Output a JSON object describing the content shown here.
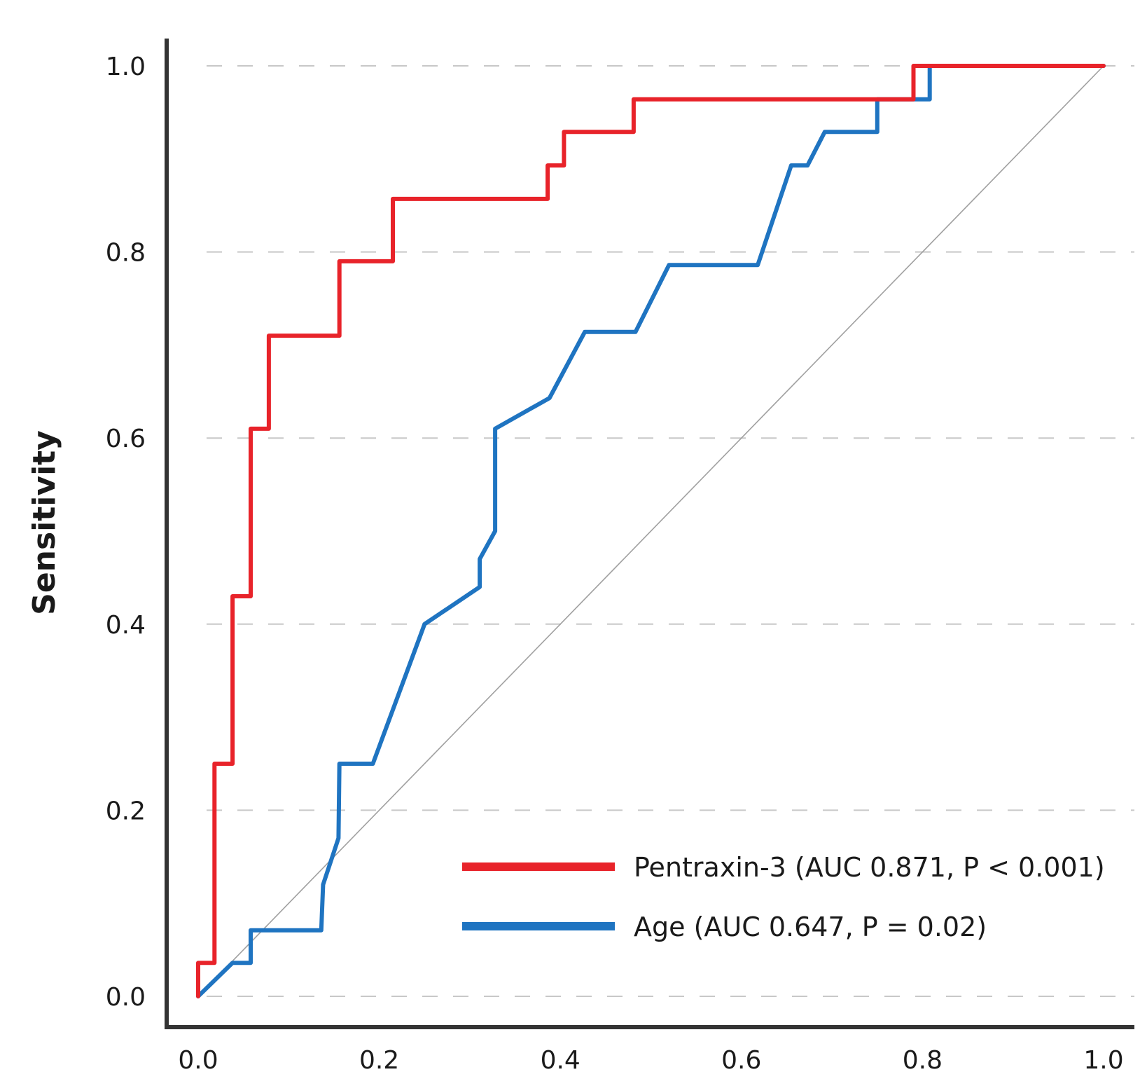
{
  "chart_data": {
    "type": "line",
    "title": "",
    "xlabel": "",
    "ylabel": "Sensitivity",
    "xlim": [
      0,
      1
    ],
    "ylim": [
      0,
      1
    ],
    "grid": "horizontal-dashed",
    "legend_position": "bottom-right",
    "x_ticks": [
      "0.0",
      "0.2",
      "0.4",
      "0.6",
      "0.8",
      "1.0"
    ],
    "y_ticks": [
      "0.0",
      "0.2",
      "0.4",
      "0.6",
      "0.8",
      "1.0"
    ],
    "reference_line": {
      "from": [
        0,
        0
      ],
      "to": [
        1,
        1
      ],
      "color": "#a0a0a0"
    },
    "series": [
      {
        "name": "Pentraxin-3 (AUC 0.871, P < 0.001)",
        "color": "#e8232a",
        "points": [
          [
            0.0,
            0.0
          ],
          [
            0.0,
            0.036
          ],
          [
            0.018,
            0.036
          ],
          [
            0.018,
            0.25
          ],
          [
            0.038,
            0.25
          ],
          [
            0.038,
            0.43
          ],
          [
            0.058,
            0.43
          ],
          [
            0.058,
            0.61
          ],
          [
            0.078,
            0.61
          ],
          [
            0.078,
            0.71
          ],
          [
            0.156,
            0.71
          ],
          [
            0.156,
            0.79
          ],
          [
            0.215,
            0.79
          ],
          [
            0.215,
            0.857
          ],
          [
            0.386,
            0.857
          ],
          [
            0.386,
            0.893
          ],
          [
            0.404,
            0.893
          ],
          [
            0.404,
            0.929
          ],
          [
            0.481,
            0.929
          ],
          [
            0.481,
            0.964
          ],
          [
            0.79,
            0.964
          ],
          [
            0.79,
            1.0
          ],
          [
            1.0,
            1.0
          ]
        ]
      },
      {
        "name": "Age (AUC 0.647, P = 0.02)",
        "color": "#1f74c1",
        "points": [
          [
            0.0,
            0.0
          ],
          [
            0.038,
            0.036
          ],
          [
            0.058,
            0.036
          ],
          [
            0.058,
            0.071
          ],
          [
            0.136,
            0.071
          ],
          [
            0.138,
            0.12
          ],
          [
            0.155,
            0.17
          ],
          [
            0.156,
            0.25
          ],
          [
            0.193,
            0.25
          ],
          [
            0.25,
            0.4
          ],
          [
            0.311,
            0.44
          ],
          [
            0.311,
            0.47
          ],
          [
            0.328,
            0.5
          ],
          [
            0.328,
            0.61
          ],
          [
            0.388,
            0.643
          ],
          [
            0.427,
            0.714
          ],
          [
            0.483,
            0.714
          ],
          [
            0.52,
            0.786
          ],
          [
            0.618,
            0.786
          ],
          [
            0.655,
            0.893
          ],
          [
            0.673,
            0.893
          ],
          [
            0.692,
            0.929
          ],
          [
            0.75,
            0.929
          ],
          [
            0.75,
            0.964
          ],
          [
            0.808,
            0.964
          ],
          [
            0.808,
            1.0
          ],
          [
            1.0,
            1.0
          ]
        ]
      }
    ]
  }
}
